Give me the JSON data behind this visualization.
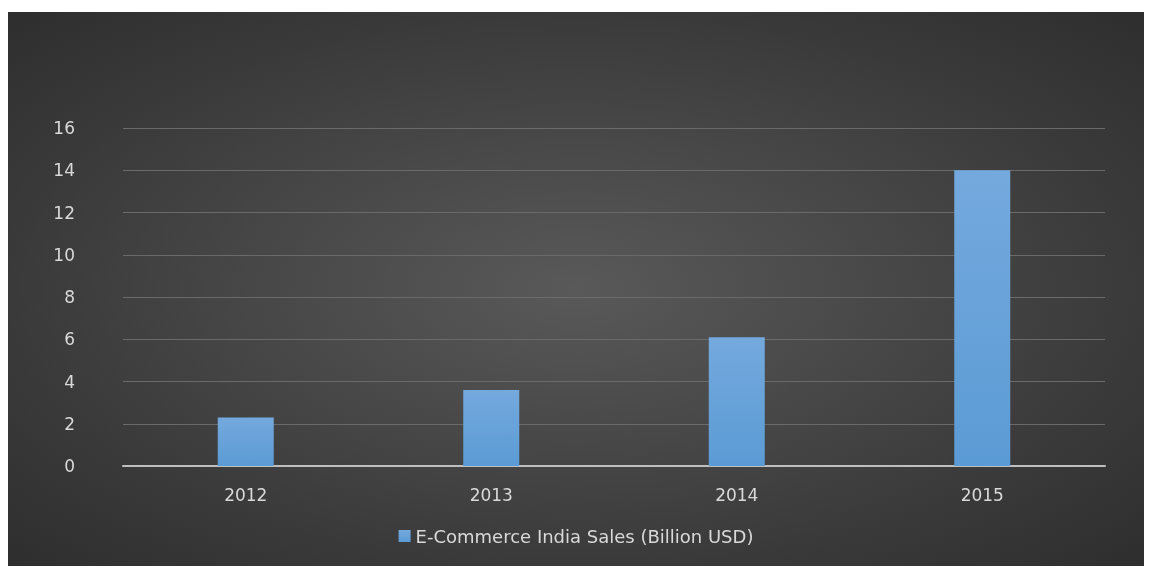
{
  "chart_data": {
    "type": "bar",
    "categories": [
      "2012",
      "2013",
      "2014",
      "2015"
    ],
    "series": [
      {
        "name": "E-Commerce India Sales (Billion USD)",
        "color": "#5b9bd5",
        "values": [
          2.3,
          3.6,
          6.1,
          14
        ]
      }
    ],
    "ylim": [
      0,
      16
    ],
    "yticks": [
      0,
      2,
      4,
      6,
      8,
      10,
      12,
      14,
      16
    ],
    "grid": "y",
    "legend": "bottom"
  }
}
